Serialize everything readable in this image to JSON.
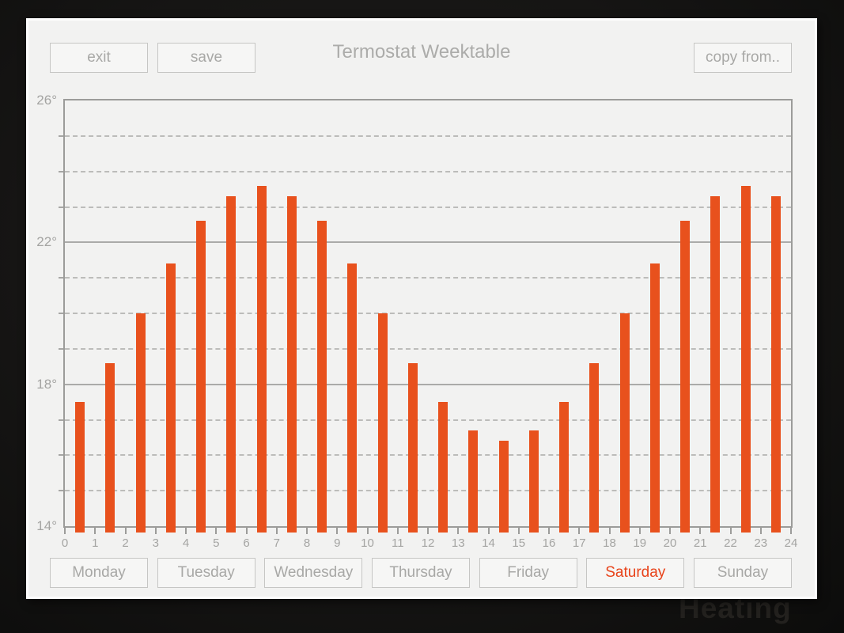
{
  "background_text": "Heating",
  "header": {
    "exit_label": "exit",
    "save_label": "save",
    "title": "Termostat Weektable",
    "copy_from_label": "copy from.."
  },
  "days": [
    {
      "label": "Monday",
      "selected": false
    },
    {
      "label": "Tuesday",
      "selected": false
    },
    {
      "label": "Wednesday",
      "selected": false
    },
    {
      "label": "Thursday",
      "selected": false
    },
    {
      "label": "Friday",
      "selected": false
    },
    {
      "label": "Saturday",
      "selected": true
    },
    {
      "label": "Sunday",
      "selected": false
    }
  ],
  "colors": {
    "bar": "#e8511d",
    "selected_day_text": "#e8431a",
    "panel_background": "#f2f2f1",
    "muted_text": "#a8a8a6",
    "grid_solid": "#ababa9",
    "grid_dashed": "#bcbcba"
  },
  "chart_data": {
    "type": "bar",
    "title": "Termostat Weektable",
    "x_hours": [
      0,
      1,
      2,
      3,
      4,
      5,
      6,
      7,
      8,
      9,
      10,
      11,
      12,
      13,
      14,
      15,
      16,
      17,
      18,
      19,
      20,
      21,
      22,
      23
    ],
    "values": [
      17.5,
      18.6,
      20.0,
      21.4,
      22.6,
      23.3,
      23.6,
      23.3,
      22.6,
      21.4,
      20.0,
      18.6,
      17.5,
      16.7,
      16.4,
      16.7,
      17.5,
      18.6,
      20.0,
      21.4,
      22.6,
      23.3,
      23.6,
      23.3
    ],
    "ylim": [
      14,
      26
    ],
    "xlim": [
      0,
      24
    ],
    "x_tick_labels": [
      "0",
      "1",
      "2",
      "3",
      "4",
      "5",
      "6",
      "7",
      "8",
      "9",
      "10",
      "11",
      "12",
      "13",
      "14",
      "15",
      "16",
      "17",
      "18",
      "19",
      "20",
      "21",
      "22",
      "23",
      "24"
    ],
    "y_tick_labels": [
      {
        "value": 26,
        "label": "26°"
      },
      {
        "value": 22,
        "label": "22°"
      },
      {
        "value": 18,
        "label": "18°"
      },
      {
        "value": 14,
        "label": "14°"
      }
    ],
    "solid_gridlines": [
      18,
      22
    ],
    "dashed_gridlines": [
      15,
      16,
      17,
      19,
      20,
      21,
      23,
      24,
      25
    ],
    "grid": true,
    "legend": false,
    "bar_color": "#e8511d"
  }
}
